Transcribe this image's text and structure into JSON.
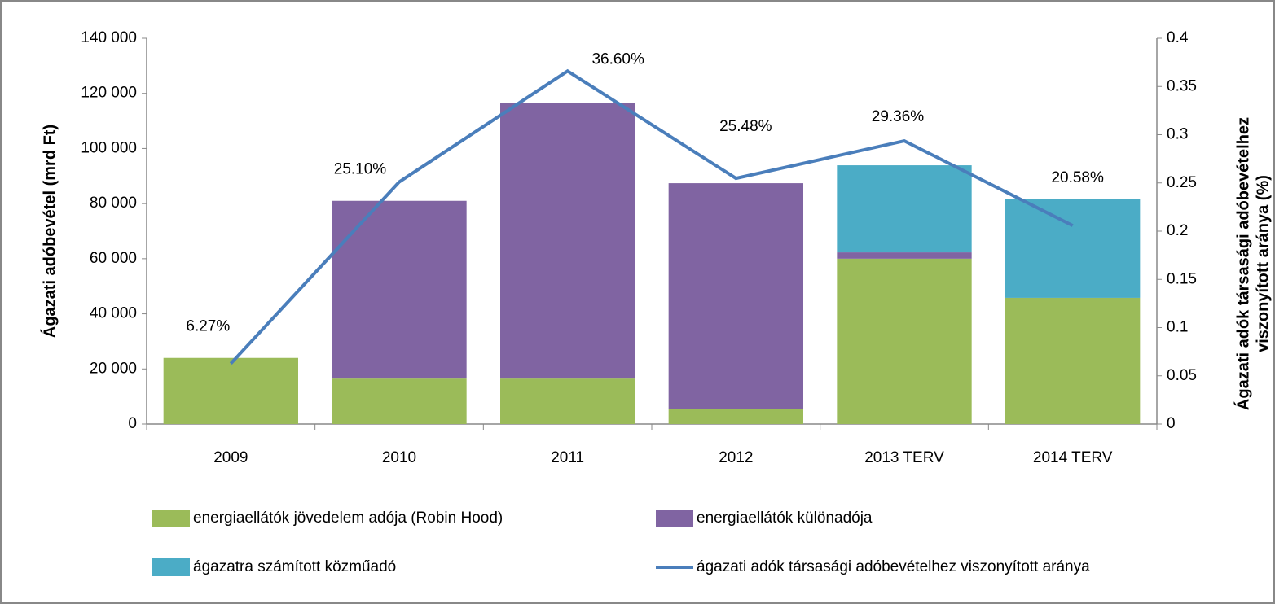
{
  "chart_data": {
    "type": "bar",
    "categories": [
      "2009",
      "2010",
      "2011",
      "2012",
      "2013 TERV",
      "2014 TERV"
    ],
    "ylabel": "Ágazati adóbevétel (mrd Ft)",
    "y2label": [
      "Ágazati adók társasági adóbevételhez",
      "viszonyított aránya (%)"
    ],
    "ylim": [
      0,
      140000
    ],
    "yticks": [
      0,
      {
        "value": 20000,
        "label": "20 000"
      },
      {
        "value": 40000,
        "label": "40 000"
      },
      {
        "value": 60000,
        "label": "60 000"
      },
      {
        "value": 80000,
        "label": "80 000"
      },
      {
        "value": 100000,
        "label": "100 000"
      },
      {
        "value": 120000,
        "label": "120 000"
      },
      {
        "value": 140000,
        "label": "140 000"
      }
    ],
    "y2lim": [
      0,
      0.4
    ],
    "y2ticks": [
      0,
      0.05,
      0.1,
      0.15,
      0.2,
      0.25,
      0.3,
      0.35,
      0.4
    ],
    "stacked": true,
    "series": [
      {
        "name": "energiaellátók jövedelem adója (Robin Hood)",
        "color": "#9bbb59",
        "values": [
          24000,
          16500,
          16500,
          5600,
          60000,
          45800
        ]
      },
      {
        "name": "energiaellátók különadója",
        "color": "#8064a2",
        "values": [
          0,
          64500,
          100000,
          81800,
          2300,
          0
        ]
      },
      {
        "name": "ágazatra számított közműadó",
        "color": "#4bacc6",
        "values": [
          0,
          0,
          0,
          0,
          31600,
          36000
        ]
      },
      {
        "name": "ágazati adók társasági adóbevételhez viszonyított aránya",
        "color": "#4a7ebb",
        "type": "line",
        "axis": "y2",
        "values": [
          0.0627,
          0.251,
          0.366,
          0.2548,
          0.2936,
          0.2058
        ],
        "value_labels": [
          "6.27%",
          "25.10%",
          "36.60%",
          "25.48%",
          "29.36%",
          "20.58%"
        ]
      }
    ]
  }
}
